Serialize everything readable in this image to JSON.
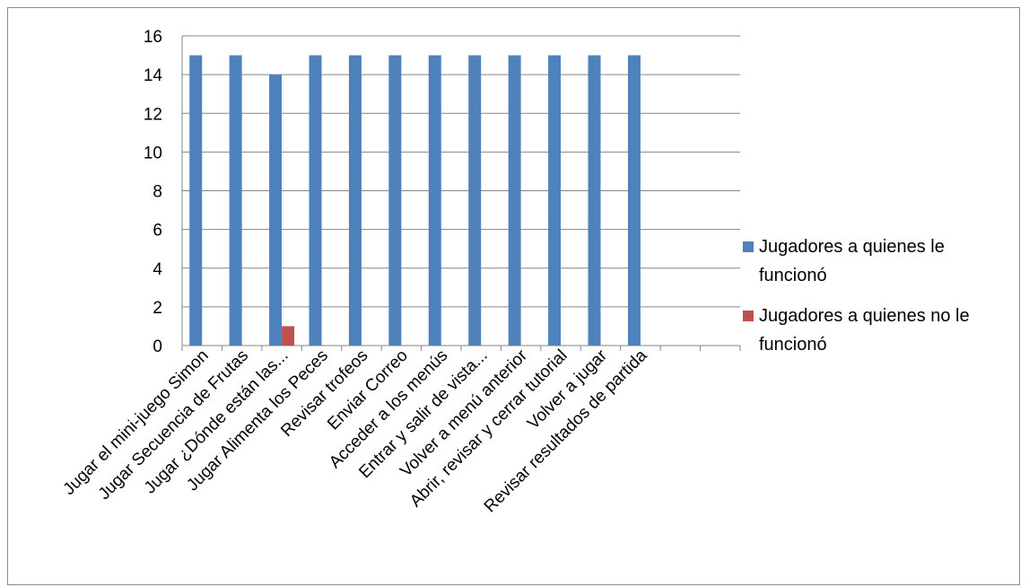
{
  "chart_data": {
    "type": "bar",
    "categories": [
      "Jugar el mini-juego Simon",
      "Jugar Secuencia de Frutas",
      "Jugar ¿Dónde están las...",
      "Jugar Alimenta los Peces",
      "Revisar trofeos",
      "Enviar Correo",
      "Acceder a los menús",
      "Entrar y salir de vista...",
      "Volver a menú anterior",
      "Abrir, revisar y cerrar tutorial",
      "Volver a jugar",
      "Revisar resultados de partida",
      "",
      ""
    ],
    "series": [
      {
        "name": "Jugadores a quienes le funcionó",
        "name_lines": [
          "Jugadores a quienes le",
          "funcionó"
        ],
        "color": "#4f81bd",
        "values": [
          15,
          15,
          14,
          15,
          15,
          15,
          15,
          15,
          15,
          15,
          15,
          15,
          null,
          null
        ]
      },
      {
        "name": "Jugadores a quienes no le funcionó",
        "name_lines": [
          "Jugadores a quienes no le",
          "funcionó"
        ],
        "color": "#c0504d",
        "values": [
          null,
          null,
          1,
          null,
          null,
          null,
          null,
          null,
          null,
          null,
          null,
          null,
          null,
          null
        ]
      }
    ],
    "ylim": [
      0,
      16
    ],
    "yticks": [
      "0",
      "2",
      "4",
      "6",
      "8",
      "10",
      "12",
      "14",
      "16"
    ],
    "grid": true,
    "legend": "right"
  }
}
